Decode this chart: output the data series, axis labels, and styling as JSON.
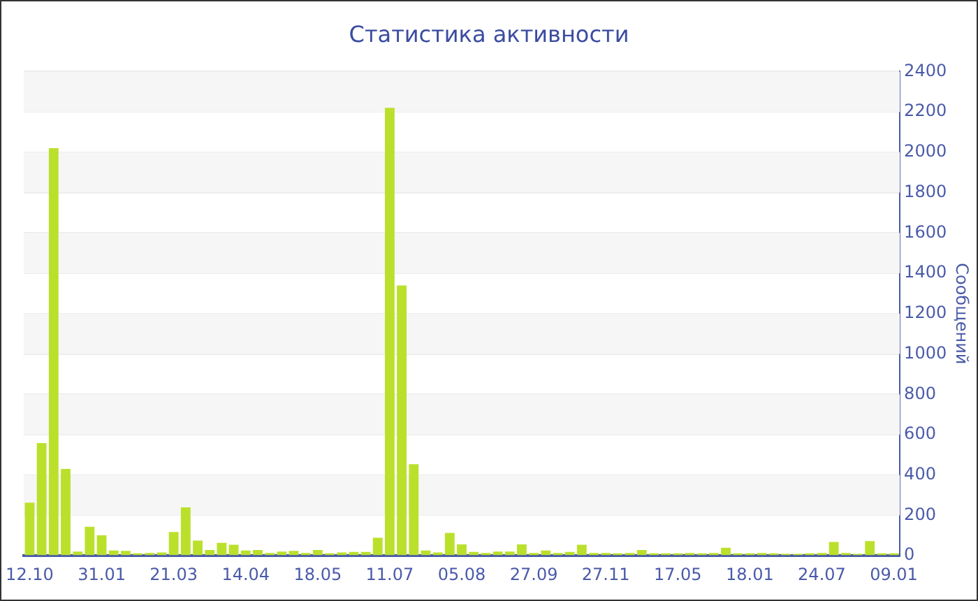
{
  "chart_data": {
    "type": "bar",
    "title": "Статистика активности",
    "ylabel": "Сообщений",
    "categories": [
      "12.10",
      null,
      null,
      null,
      null,
      null,
      "31.01",
      null,
      null,
      null,
      null,
      null,
      "21.03",
      null,
      null,
      null,
      null,
      null,
      "14.04",
      null,
      null,
      null,
      null,
      null,
      "18.05",
      null,
      null,
      null,
      null,
      null,
      "11.07",
      null,
      null,
      null,
      null,
      null,
      "05.08",
      null,
      null,
      null,
      null,
      null,
      "27.09",
      null,
      null,
      null,
      null,
      null,
      "27.11",
      null,
      null,
      null,
      null,
      null,
      "17.05",
      null,
      null,
      null,
      null,
      null,
      "18.01",
      null,
      null,
      null,
      null,
      null,
      "24.07",
      null,
      null,
      null,
      null,
      null,
      "09.01"
    ],
    "values": [
      263,
      558,
      2020,
      430,
      21,
      144,
      101,
      26,
      24,
      12,
      14,
      16,
      118,
      240,
      75,
      28,
      64,
      54,
      26,
      28,
      14,
      21,
      24,
      14,
      28,
      12,
      16,
      19,
      19,
      89,
      2220,
      1340,
      454,
      26,
      16,
      113,
      56,
      19,
      14,
      21,
      21,
      56,
      14,
      26,
      14,
      19,
      54,
      14,
      14,
      12,
      14,
      28,
      12,
      12,
      12,
      14,
      12,
      14,
      40,
      12,
      12,
      14,
      12,
      9,
      9,
      12,
      14,
      68,
      14,
      9,
      73,
      12,
      12
    ],
    "color": "#bbe02c",
    "ylim": [
      0,
      2400
    ],
    "yticks": [
      0,
      200,
      400,
      600,
      800,
      1000,
      1200,
      1400,
      1600,
      1800,
      2000,
      2200,
      2400
    ],
    "grid": "y"
  }
}
